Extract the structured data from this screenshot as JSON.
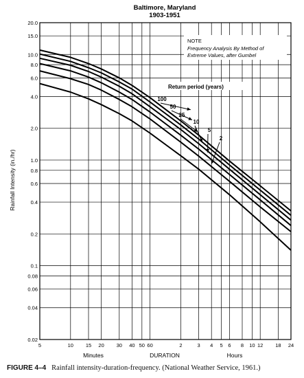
{
  "chart_data": {
    "type": "line",
    "title": "Baltimore, Maryland",
    "subtitle": "1903-1951",
    "ylabel": "Rainfall Intensity (in./hr)",
    "xlabel": "DURATION",
    "xlabel_minutes": "Minutes",
    "xlabel_hours": "Hours",
    "x_scale": "log",
    "y_scale": "log",
    "xlim_minutes": [
      5,
      1440
    ],
    "ylim": [
      0.02,
      20
    ],
    "grid": true,
    "y_ticks": [
      {
        "value": 20,
        "label": "20.0"
      },
      {
        "value": 15,
        "label": "15.0"
      },
      {
        "value": 10,
        "label": "10.0"
      },
      {
        "value": 8,
        "label": "8.0"
      },
      {
        "value": 6,
        "label": "6.0"
      },
      {
        "value": 4,
        "label": "4.0"
      },
      {
        "value": 2,
        "label": "2.0"
      },
      {
        "value": 1,
        "label": "1.0"
      },
      {
        "value": 0.8,
        "label": "0.8"
      },
      {
        "value": 0.6,
        "label": "0.6"
      },
      {
        "value": 0.4,
        "label": "0.4"
      },
      {
        "value": 0.2,
        "label": "0.2"
      },
      {
        "value": 0.1,
        "label": "0.1"
      },
      {
        "value": 0.08,
        "label": "0.08"
      },
      {
        "value": 0.06,
        "label": "0.06"
      },
      {
        "value": 0.04,
        "label": "0.04"
      },
      {
        "value": 0.02,
        "label": "0.02"
      }
    ],
    "x_ticks_minutes": [
      {
        "value": 5,
        "label": "5"
      },
      {
        "value": 10,
        "label": "10"
      },
      {
        "value": 15,
        "label": "15"
      },
      {
        "value": 20,
        "label": "20"
      },
      {
        "value": 30,
        "label": "30"
      },
      {
        "value": 40,
        "label": "40"
      },
      {
        "value": 50,
        "label": "50"
      },
      {
        "value": 60,
        "label": "60"
      }
    ],
    "x_ticks_hours": [
      {
        "value": 2,
        "label": "2"
      },
      {
        "value": 3,
        "label": "3"
      },
      {
        "value": 4,
        "label": "4"
      },
      {
        "value": 5,
        "label": "5"
      },
      {
        "value": 6,
        "label": "6"
      },
      {
        "value": 8,
        "label": "8"
      },
      {
        "value": 10,
        "label": "10"
      },
      {
        "value": 12,
        "label": "12"
      },
      {
        "value": 18,
        "label": "18"
      },
      {
        "value": 24,
        "label": "24"
      }
    ],
    "note_lines": [
      "NOTE",
      "Frequency Analysis By Method of",
      "Extreme Values, after Gumbel"
    ],
    "legend_title": "Return period (years)",
    "series": [
      {
        "name": "100",
        "x_minutes": [
          5,
          10,
          15,
          20,
          30,
          40,
          60,
          120,
          180,
          360,
          720,
          1440
        ],
        "y": [
          11.0,
          9.4,
          8.2,
          7.3,
          6.0,
          5.1,
          3.9,
          2.35,
          1.72,
          0.98,
          0.57,
          0.33
        ]
      },
      {
        "name": "50",
        "x_minutes": [
          5,
          10,
          15,
          20,
          30,
          40,
          60,
          120,
          180,
          360,
          720,
          1440
        ],
        "y": [
          10.1,
          8.6,
          7.5,
          6.7,
          5.5,
          4.7,
          3.55,
          2.15,
          1.58,
          0.9,
          0.52,
          0.3
        ]
      },
      {
        "name": "25",
        "x_minutes": [
          5,
          10,
          15,
          20,
          30,
          40,
          60,
          120,
          180,
          360,
          720,
          1440
        ],
        "y": [
          9.2,
          7.9,
          6.9,
          6.1,
          5.0,
          4.25,
          3.2,
          1.95,
          1.43,
          0.82,
          0.47,
          0.27
        ]
      },
      {
        "name": "10",
        "x_minutes": [
          5,
          10,
          15,
          20,
          30,
          40,
          60,
          120,
          180,
          360,
          720,
          1440
        ],
        "y": [
          8.2,
          7.0,
          6.1,
          5.4,
          4.4,
          3.75,
          2.85,
          1.72,
          1.27,
          0.73,
          0.42,
          0.24
        ]
      },
      {
        "name": "5",
        "x_minutes": [
          5,
          10,
          15,
          20,
          30,
          40,
          60,
          120,
          180,
          360,
          720,
          1440
        ],
        "y": [
          7.0,
          5.9,
          5.2,
          4.6,
          3.75,
          3.2,
          2.45,
          1.48,
          1.09,
          0.63,
          0.36,
          0.21
        ]
      },
      {
        "name": "2",
        "x_minutes": [
          5,
          10,
          15,
          20,
          30,
          40,
          60,
          120,
          180,
          360,
          720,
          1440
        ],
        "y": [
          5.3,
          4.4,
          3.8,
          3.35,
          2.75,
          2.35,
          1.8,
          1.1,
          0.82,
          0.47,
          0.26,
          0.14
        ]
      }
    ],
    "series_labels": [
      {
        "name": "100",
        "at_minutes": 150,
        "at_y": 3.0
      },
      {
        "name": "50",
        "at_minutes": 155,
        "at_y": 2.4
      },
      {
        "name": "25",
        "at_minutes": 175,
        "at_y": 1.85
      },
      {
        "name": "10",
        "at_minutes": 195,
        "at_y": 1.48
      },
      {
        "name": "5",
        "at_minutes": 220,
        "at_y": 1.18
      },
      {
        "name": "2",
        "at_minutes": 240,
        "at_y": 0.92
      }
    ]
  },
  "caption": {
    "figure": "FIGURE 4–4",
    "text": "Rainfall intensity-duration-frequency. (National Weather Service, 1961.)"
  }
}
